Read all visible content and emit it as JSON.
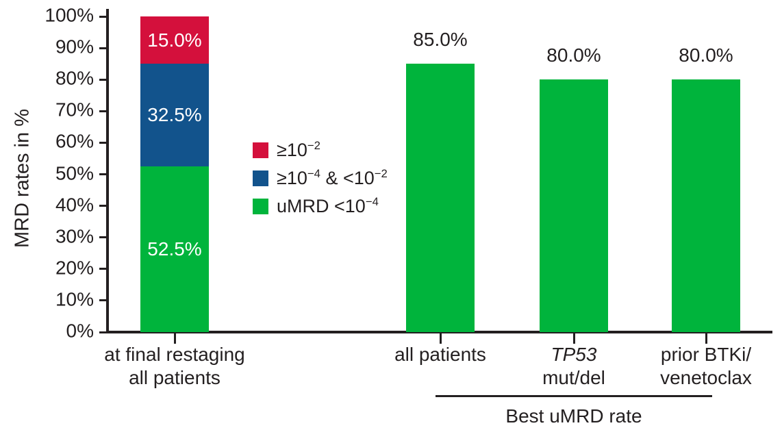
{
  "colors": {
    "red": "#d4103c",
    "blue": "#12538c",
    "green": "#00b43c",
    "axis": "#231f20",
    "text": "#231f20",
    "on_bar_text": "#ffffff"
  },
  "chart_data": {
    "type": "bar",
    "title": "",
    "ylabel": "MRD rates in %",
    "xlabel": "",
    "ylim": [
      0,
      100
    ],
    "grid": false,
    "legend_position": "center-left of plot area",
    "ytick_labels": [
      "0%",
      "10%",
      "20%",
      "30%",
      "40%",
      "50%",
      "60%",
      "70%",
      "80%",
      "90%",
      "100%"
    ],
    "legend": {
      "items": [
        {
          "color": "red",
          "runs": [
            {
              "t": "≥10"
            },
            {
              "t": "−2",
              "sup": true
            }
          ]
        },
        {
          "color": "blue",
          "runs": [
            {
              "t": "≥10"
            },
            {
              "t": "−4",
              "sup": true
            },
            {
              "t": " & <10"
            },
            {
              "t": "−2",
              "sup": true
            }
          ]
        },
        {
          "color": "green",
          "runs": [
            {
              "t": "uMRD <10"
            },
            {
              "t": "−4",
              "sup": true
            }
          ]
        }
      ]
    },
    "bars": [
      {
        "name": "at-final-restaging-all-patients",
        "label_lines": [
          {
            "text": "at final restaging"
          },
          {
            "text": "all patients"
          }
        ],
        "segments": [
          {
            "color": "green",
            "value": 52.5,
            "label": "52.5%"
          },
          {
            "color": "blue",
            "value": 32.5,
            "label": "32.5%"
          },
          {
            "color": "red",
            "value": 15.0,
            "label": "15.0%"
          }
        ]
      },
      {
        "name": "best-umrd-all-patients",
        "label_lines": [
          {
            "text": "all patients"
          }
        ],
        "segments": [
          {
            "color": "green",
            "value": 85.0
          }
        ],
        "top_label": "85.0%"
      },
      {
        "name": "best-umrd-tp53-mut-del",
        "label_lines": [
          {
            "text": "TP53",
            "italic": true
          },
          {
            "text": "mut/del"
          }
        ],
        "segments": [
          {
            "color": "green",
            "value": 80.0
          }
        ],
        "top_label": "80.0%"
      },
      {
        "name": "best-umrd-prior-btki-venetoclax",
        "label_lines": [
          {
            "text": "prior BTKi/"
          },
          {
            "text": "venetoclax"
          }
        ],
        "segments": [
          {
            "color": "green",
            "value": 80.0
          }
        ],
        "top_label": "80.0%"
      }
    ],
    "bracket": {
      "label": "Best uMRD rate",
      "covers": [
        "all patients",
        "TP53 mut/del",
        "prior BTKi/venetoclax"
      ]
    }
  }
}
